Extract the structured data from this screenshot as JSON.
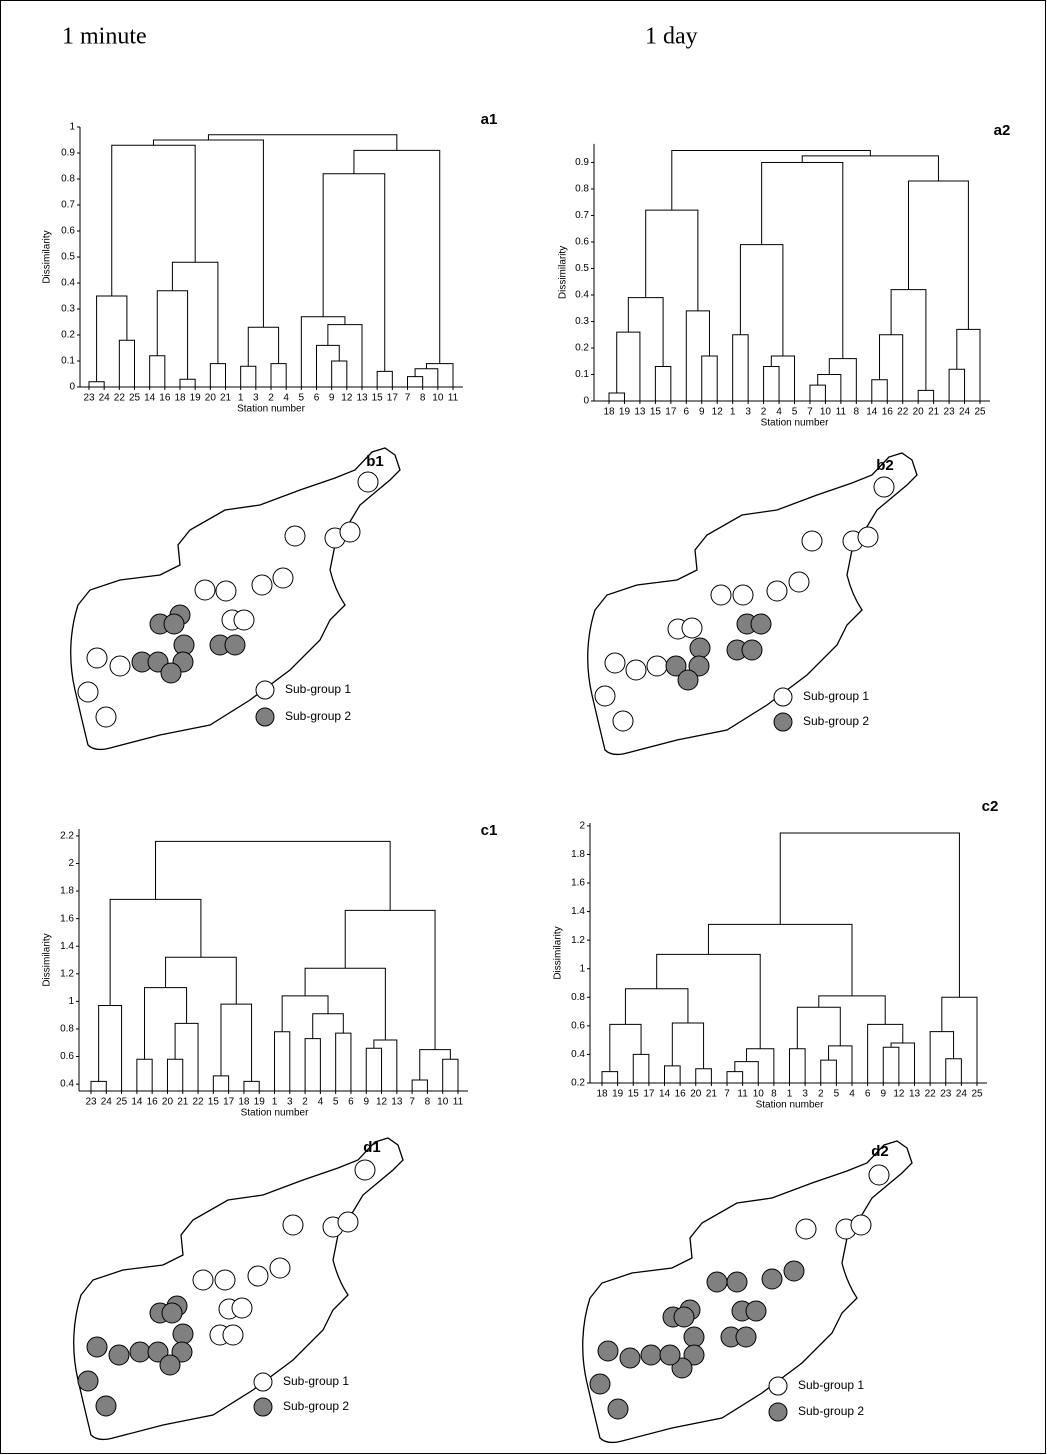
{
  "headings": [
    "1 minute",
    "1 day"
  ],
  "chart_data": [
    {
      "type": "dendrogram",
      "title": "a1",
      "ylabel": "Dissimilarity",
      "xlabel": "Station number",
      "ylim": [
        0,
        1
      ],
      "yticks": [
        0,
        0.1,
        0.2,
        0.3,
        0.4,
        0.5,
        0.6,
        0.7,
        0.8,
        0.9,
        1
      ],
      "tree": {
        "height": 0.97,
        "children": [
          {
            "height": 0.95,
            "children": [
              {
                "height": 0.93,
                "children": [
                  {
                    "height": 0.35,
                    "children": [
                      {
                        "height": 0.02,
                        "children": [
                          "23",
                          "24"
                        ]
                      },
                      {
                        "height": 0.18,
                        "children": [
                          "22",
                          "25"
                        ]
                      }
                    ]
                  },
                  {
                    "height": 0.48,
                    "children": [
                      {
                        "height": 0.37,
                        "children": [
                          {
                            "height": 0.12,
                            "children": [
                              "14",
                              "16"
                            ]
                          },
                          {
                            "height": 0.03,
                            "children": [
                              "18",
                              "19"
                            ]
                          }
                        ]
                      },
                      {
                        "height": 0.09,
                        "children": [
                          "20",
                          "21"
                        ]
                      }
                    ]
                  }
                ]
              },
              {
                "height": 0.23,
                "children": [
                  {
                    "height": 0.08,
                    "children": [
                      "1",
                      "3"
                    ]
                  },
                  {
                    "height": 0.09,
                    "children": [
                      "2",
                      "4"
                    ]
                  }
                ]
              }
            ]
          },
          {
            "height": 0.91,
            "children": [
              {
                "height": 0.82,
                "children": [
                  {
                    "height": 0.27,
                    "children": [
                      "5",
                      {
                        "height": 0.24,
                        "children": [
                          {
                            "height": 0.16,
                            "children": [
                              "6",
                              {
                                "height": 0.1,
                                "children": [
                                  "9",
                                  "12"
                                ]
                              }
                            ]
                          },
                          "13"
                        ]
                      }
                    ]
                  },
                  {
                    "height": 0.06,
                    "children": [
                      "15",
                      "17"
                    ]
                  }
                ]
              },
              {
                "height": 0.09,
                "children": [
                  {
                    "height": 0.07,
                    "children": [
                      {
                        "height": 0.04,
                        "children": [
                          "7",
                          "8"
                        ]
                      },
                      "10"
                    ]
                  },
                  "11"
                ]
              }
            ]
          }
        ]
      }
    },
    {
      "type": "dendrogram",
      "title": "a2",
      "ylabel": "Dissimilarity",
      "xlabel": "Station number",
      "ylim": [
        0,
        0.97
      ],
      "yticks": [
        0,
        0.1,
        0.2,
        0.3,
        0.4,
        0.5,
        0.6,
        0.7,
        0.8,
        0.9
      ],
      "tree": {
        "height": 0.945,
        "children": [
          {
            "height": 0.72,
            "children": [
              {
                "height": 0.39,
                "children": [
                  {
                    "height": 0.26,
                    "children": [
                      {
                        "height": 0.03,
                        "children": [
                          "18",
                          "19"
                        ]
                      },
                      "13"
                    ]
                  },
                  {
                    "height": 0.13,
                    "children": [
                      "15",
                      "17"
                    ]
                  }
                ]
              },
              {
                "height": 0.34,
                "children": [
                  "6",
                  {
                    "height": 0.17,
                    "children": [
                      "9",
                      "12"
                    ]
                  }
                ]
              }
            ]
          },
          {
            "height": 0.925,
            "children": [
              {
                "height": 0.9,
                "children": [
                  {
                    "height": 0.59,
                    "children": [
                      {
                        "height": 0.25,
                        "children": [
                          "1",
                          "3"
                        ]
                      },
                      {
                        "height": 0.17,
                        "children": [
                          {
                            "height": 0.13,
                            "children": [
                              "2",
                              "4"
                            ]
                          },
                          "5"
                        ]
                      }
                    ]
                  },
                  {
                    "height": 0.16,
                    "children": [
                      {
                        "height": 0.1,
                        "children": [
                          {
                            "height": 0.06,
                            "children": [
                              "7",
                              "10"
                            ]
                          },
                          "11"
                        ]
                      },
                      "8"
                    ]
                  }
                ]
              },
              {
                "height": 0.83,
                "children": [
                  {
                    "height": 0.42,
                    "children": [
                      {
                        "height": 0.25,
                        "children": [
                          {
                            "height": 0.08,
                            "children": [
                              "14",
                              "16"
                            ]
                          },
                          "22"
                        ]
                      },
                      {
                        "height": 0.04,
                        "children": [
                          "20",
                          "21"
                        ]
                      }
                    ]
                  },
                  {
                    "height": 0.27,
                    "children": [
                      {
                        "height": 0.12,
                        "children": [
                          "23",
                          "24"
                        ]
                      },
                      "25"
                    ]
                  }
                ]
              }
            ]
          }
        ]
      }
    },
    {
      "type": "dendrogram",
      "title": "c1",
      "ylabel": "Dissimilarity",
      "xlabel": "Station number",
      "ylim": [
        0.35,
        2.25
      ],
      "yticks": [
        0.4,
        0.6,
        0.8,
        1,
        1.2,
        1.4,
        1.6,
        1.8,
        2,
        2.2
      ],
      "tree": {
        "height": 2.16,
        "children": [
          {
            "height": 1.74,
            "children": [
              {
                "height": 0.97,
                "children": [
                  {
                    "height": 0.42,
                    "children": [
                      "23",
                      "24"
                    ]
                  },
                  "25"
                ]
              },
              {
                "height": 1.32,
                "children": [
                  {
                    "height": 1.1,
                    "children": [
                      {
                        "height": 0.58,
                        "children": [
                          "14",
                          "16"
                        ]
                      },
                      {
                        "height": 0.84,
                        "children": [
                          {
                            "height": 0.58,
                            "children": [
                              "20",
                              "21"
                            ]
                          },
                          "22"
                        ]
                      }
                    ]
                  },
                  {
                    "height": 0.98,
                    "children": [
                      {
                        "height": 0.46,
                        "children": [
                          "15",
                          "17"
                        ]
                      },
                      {
                        "height": 0.42,
                        "children": [
                          "18",
                          "19"
                        ]
                      }
                    ]
                  }
                ]
              }
            ]
          },
          {
            "height": 1.66,
            "children": [
              {
                "height": 1.24,
                "children": [
                  {
                    "height": 1.04,
                    "children": [
                      {
                        "height": 0.78,
                        "children": [
                          "1",
                          "3"
                        ]
                      },
                      {
                        "height": 0.91,
                        "children": [
                          {
                            "height": 0.73,
                            "children": [
                              "2",
                              "4"
                            ]
                          },
                          {
                            "height": 0.77,
                            "children": [
                              "5",
                              "6"
                            ]
                          }
                        ]
                      }
                    ]
                  },
                  {
                    "height": 0.72,
                    "children": [
                      {
                        "height": 0.66,
                        "children": [
                          "9",
                          "12"
                        ]
                      },
                      "13"
                    ]
                  }
                ]
              },
              {
                "height": 0.65,
                "children": [
                  {
                    "height": 0.43,
                    "children": [
                      "7",
                      "8"
                    ]
                  },
                  {
                    "height": 0.58,
                    "children": [
                      "10",
                      "11"
                    ]
                  }
                ]
              }
            ]
          }
        ]
      }
    },
    {
      "type": "dendrogram",
      "title": "c2",
      "ylabel": "Dissimilarity",
      "xlabel": "Station number",
      "ylim": [
        0.2,
        2.02
      ],
      "yticks": [
        0.2,
        0.4,
        0.6,
        0.8,
        1,
        1.2,
        1.4,
        1.6,
        1.8,
        2
      ],
      "tree": {
        "height": 1.95,
        "children": [
          {
            "height": 1.31,
            "children": [
              {
                "height": 1.1,
                "children": [
                  {
                    "height": 0.86,
                    "children": [
                      {
                        "height": 0.61,
                        "children": [
                          {
                            "height": 0.28,
                            "children": [
                              "18",
                              "19"
                            ]
                          },
                          {
                            "height": 0.4,
                            "children": [
                              "15",
                              "17"
                            ]
                          }
                        ]
                      },
                      {
                        "height": 0.62,
                        "children": [
                          {
                            "height": 0.32,
                            "children": [
                              "14",
                              "16"
                            ]
                          },
                          {
                            "height": 0.3,
                            "children": [
                              "20",
                              "21"
                            ]
                          }
                        ]
                      }
                    ]
                  },
                  {
                    "height": 0.44,
                    "children": [
                      {
                        "height": 0.35,
                        "children": [
                          {
                            "height": 0.28,
                            "children": [
                              "7",
                              "11"
                            ]
                          },
                          "10"
                        ]
                      },
                      "8"
                    ]
                  }
                ]
              },
              {
                "height": 0.81,
                "children": [
                  {
                    "height": 0.73,
                    "children": [
                      {
                        "height": 0.44,
                        "children": [
                          "1",
                          "3"
                        ]
                      },
                      {
                        "height": 0.46,
                        "children": [
                          {
                            "height": 0.36,
                            "children": [
                              "2",
                              "5"
                            ]
                          },
                          "4"
                        ]
                      }
                    ]
                  },
                  {
                    "height": 0.61,
                    "children": [
                      "6",
                      {
                        "height": 0.48,
                        "children": [
                          {
                            "height": 0.45,
                            "children": [
                              "9",
                              "12"
                            ]
                          },
                          "13"
                        ]
                      }
                    ]
                  }
                ]
              }
            ]
          },
          {
            "height": 0.8,
            "children": [
              {
                "height": 0.56,
                "children": [
                  "22",
                  {
                    "height": 0.37,
                    "children": [
                      "23",
                      "24"
                    ]
                  }
                ]
              },
              "25"
            ]
          }
        ]
      }
    }
  ],
  "maps": [
    {
      "label": "b1",
      "legend": [
        {
          "name": "Sub-group 1",
          "color": "#ffffff"
        },
        {
          "name": "Sub-group 2",
          "color": "#808080"
        }
      ]
    },
    {
      "label": "b2",
      "legend": [
        {
          "name": "Sub-group 1",
          "color": "#ffffff"
        },
        {
          "name": "Sub-group 2",
          "color": "#808080"
        }
      ]
    },
    {
      "label": "d1",
      "legend": [
        {
          "name": "Sub-group 1",
          "color": "#ffffff"
        },
        {
          "name": "Sub-group 2",
          "color": "#808080"
        }
      ]
    },
    {
      "label": "d2",
      "legend": [
        {
          "name": "Sub-group 1",
          "color": "#ffffff"
        },
        {
          "name": "Sub-group 2",
          "color": "#808080"
        }
      ]
    }
  ]
}
